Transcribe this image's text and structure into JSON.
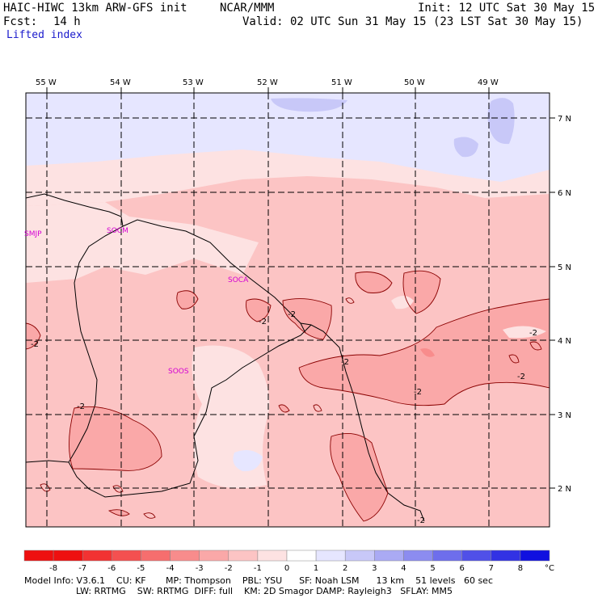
{
  "header": {
    "model_title": "HAIC-HIWC 13km ARW-GFS init",
    "center": "NCAR/MMM",
    "init": "Init: 12 UTC Sat 30 May 15",
    "fcst_label": "Fcst:",
    "fcst_value": "14 h",
    "valid": "Valid: 02 UTC Sun 31 May 15 (23 LST Sat 30 May 15)",
    "field_name": "Lifted index"
  },
  "map": {
    "lon_labels": [
      "55 W",
      "54 W",
      "53 W",
      "52 W",
      "51 W",
      "50 W",
      "49 W"
    ],
    "lat_labels": [
      "7 N",
      "6 N",
      "5 N",
      "4 N",
      "3 N",
      "2 N"
    ],
    "stations": [
      "SMJP",
      "SOCM",
      "SOCA",
      "SOOS"
    ],
    "contour_labels": [
      "-2",
      "-2",
      "-2",
      "-2",
      "-2",
      "-2",
      "-2",
      "-2",
      "-2"
    ]
  },
  "colorbar": {
    "ticks": [
      "-8",
      "-7",
      "-6",
      "-5",
      "-4",
      "-3",
      "-2",
      "-1",
      "0",
      "1",
      "2",
      "3",
      "4",
      "5",
      "6",
      "7",
      "8"
    ],
    "unit": "°C",
    "colors": [
      "#ee1010",
      "#f23232",
      "#f45050",
      "#f66e6e",
      "#f88c8c",
      "#faa8a8",
      "#fcc4c4",
      "#fde2e2",
      "#ffffff",
      "#e6e6ff",
      "#c8c8f8",
      "#aaaaf4",
      "#8c8cf0",
      "#6e6eec",
      "#5050e8",
      "#3232e4",
      "#1010e0"
    ]
  },
  "footer": {
    "line1": "Model Info: V3.6.1    CU: KF       MP: Thompson    PBL: YSU      SF: Noah LSM      13 km    51 levels   60 sec",
    "line2": "LW: RRTMG    SW: RRTMG  DIFF: full    KM: 2D Smagor DAMP: Rayleigh3   SFLAY: MM5"
  }
}
